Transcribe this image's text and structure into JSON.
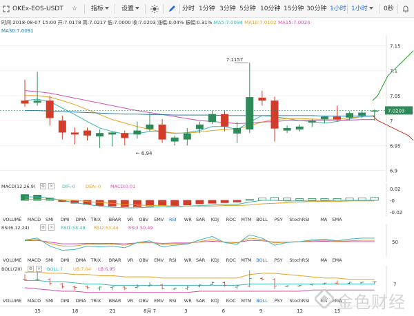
{
  "toolbar": {
    "symbol": "OKEx-EOS-USDT",
    "indicator_label": "指标",
    "settings_label": "设置",
    "intervals": [
      "分时",
      "1分钟",
      "3分钟",
      "5分钟",
      "10分钟",
      "15分钟",
      "30分钟",
      "1小时"
    ],
    "active_interval": "1小时",
    "interval_select": "1小时",
    "countdown": "0秒",
    "accent_color": "#2a6cd1"
  },
  "info_bar": {
    "time": "时间:2018-08-07 15:00",
    "open": "开:7.0178",
    "high": "高:7.0217",
    "low": "低:7.0000",
    "close": "收:7.0203",
    "change": "涨幅:0.04%",
    "amplitude": "振幅:0.31%",
    "ma5": "MA5:7.0094",
    "ma10": "MA10:7.0102",
    "ma15": "MA15:7.0024",
    "ma30": "MA30:7.0091"
  },
  "main_chart": {
    "y_ticks": [
      "7.15",
      "7.1",
      "7.05",
      "7",
      "6.95",
      "6.9"
    ],
    "current_price": "7.0203",
    "high_marker": "7.1157",
    "low_marker": "6.94",
    "up_color": "#2e8b57",
    "down_color": "#d23c2a"
  },
  "chart_data": {
    "type": "candlestick",
    "x_ticks": [
      "15",
      "18",
      "21",
      "8月 7",
      "3",
      "6",
      "9",
      "12",
      "15"
    ],
    "candles": [
      {
        "o": 7.04,
        "h": 7.082,
        "l": 7.028,
        "c": 7.034
      },
      {
        "o": 7.036,
        "h": 7.098,
        "l": 7.03,
        "c": 7.04
      },
      {
        "o": 7.04,
        "h": 7.05,
        "l": 6.99,
        "c": 7.005
      },
      {
        "o": 7.0,
        "h": 7.01,
        "l": 6.962,
        "c": 6.976
      },
      {
        "o": 6.976,
        "h": 6.986,
        "l": 6.952,
        "c": 6.972
      },
      {
        "o": 6.98,
        "h": 6.986,
        "l": 6.96,
        "c": 6.97
      },
      {
        "o": 6.968,
        "h": 6.982,
        "l": 6.945,
        "c": 6.975
      },
      {
        "o": 6.972,
        "h": 6.978,
        "l": 6.948,
        "c": 6.976
      },
      {
        "o": 6.975,
        "h": 6.98,
        "l": 6.95,
        "c": 6.965
      },
      {
        "o": 6.972,
        "h": 6.998,
        "l": 6.964,
        "c": 6.98
      },
      {
        "o": 6.983,
        "h": 7.015,
        "l": 6.978,
        "c": 6.992
      },
      {
        "o": 6.992,
        "h": 7.003,
        "l": 6.955,
        "c": 6.962
      },
      {
        "o": 6.958,
        "h": 6.97,
        "l": 6.95,
        "c": 6.966
      },
      {
        "o": 6.962,
        "h": 6.985,
        "l": 6.95,
        "c": 6.974
      },
      {
        "o": 6.983,
        "h": 6.998,
        "l": 6.975,
        "c": 6.992
      },
      {
        "o": 6.997,
        "h": 7.02,
        "l": 6.993,
        "c": 7.013
      },
      {
        "o": 7.013,
        "h": 7.02,
        "l": 6.978,
        "c": 6.988
      },
      {
        "o": 6.974,
        "h": 6.997,
        "l": 6.955,
        "c": 6.985
      },
      {
        "o": 6.982,
        "h": 7.116,
        "l": 6.975,
        "c": 7.047
      },
      {
        "o": 7.046,
        "h": 7.06,
        "l": 7.03,
        "c": 7.04
      },
      {
        "o": 7.04,
        "h": 7.048,
        "l": 6.958,
        "c": 6.984
      },
      {
        "o": 6.98,
        "h": 6.99,
        "l": 6.975,
        "c": 6.985
      },
      {
        "o": 6.982,
        "h": 6.992,
        "l": 6.978,
        "c": 6.988
      },
      {
        "o": 6.996,
        "h": 7.003,
        "l": 6.987,
        "c": 7.0
      },
      {
        "o": 7.003,
        "h": 7.01,
        "l": 6.995,
        "c": 7.008
      },
      {
        "o": 7.008,
        "h": 7.03,
        "l": 6.998,
        "c": 7.002
      },
      {
        "o": 7.006,
        "h": 7.018,
        "l": 7.0,
        "c": 7.015
      },
      {
        "o": 7.01,
        "h": 7.02,
        "l": 7.005,
        "c": 7.016
      },
      {
        "o": 7.018,
        "h": 7.022,
        "l": 7.0,
        "c": 7.02
      }
    ],
    "ma_lines": [
      {
        "name": "MA5",
        "color": "#3cb4b4",
        "values": [
          7.04,
          7.043,
          7.038,
          7.025,
          7.012,
          6.998,
          6.985,
          6.978,
          6.973,
          6.974,
          6.978,
          6.977,
          6.974,
          6.976,
          6.98,
          6.988,
          6.988,
          6.982,
          6.997,
          7.01,
          7.008,
          7.004,
          7.0,
          6.998,
          6.995,
          6.998,
          7.003,
          7.008,
          7.009
        ]
      },
      {
        "name": "MA10",
        "color": "#e8a020",
        "values": [
          7.05,
          7.05,
          7.047,
          7.04,
          7.032,
          7.022,
          7.012,
          7.002,
          6.995,
          6.988,
          6.982,
          6.978,
          6.975,
          6.975,
          6.977,
          6.98,
          6.982,
          6.983,
          6.99,
          6.997,
          7.002,
          7.004,
          7.004,
          7.003,
          7.002,
          7.003,
          7.005,
          7.008,
          7.01
        ]
      },
      {
        "name": "MA15",
        "color": "#d050b0",
        "values": [
          7.06,
          7.058,
          7.055,
          7.05,
          7.045,
          7.04,
          7.035,
          7.03,
          7.025,
          7.02,
          7.016,
          7.012,
          7.008,
          7.004,
          7.0,
          6.998,
          6.996,
          6.994,
          6.995,
          6.997,
          6.998,
          7.0,
          7.0,
          7.0,
          7.0,
          7.0,
          7.001,
          7.002,
          7.002
        ]
      },
      {
        "name": "MA30",
        "color": "#2a7ab0",
        "values": [
          7.02,
          7.02,
          7.019,
          7.018,
          7.017,
          7.016,
          7.015,
          7.014,
          7.013,
          7.013,
          7.012,
          7.012,
          7.011,
          7.011,
          7.011,
          7.011,
          7.01,
          7.01,
          7.01,
          7.01,
          7.01,
          7.01,
          7.01,
          7.01,
          7.009,
          7.009,
          7.009,
          7.009,
          7.009
        ]
      }
    ],
    "right_lines": [
      {
        "color": "#20a020",
        "values": [
          7.04,
          7.05,
          7.07,
          7.09,
          7.1,
          7.11,
          7.12,
          7.13,
          7.14
        ]
      },
      {
        "color": "#c03020",
        "values": [
          7.01,
          7.0,
          6.995,
          6.99,
          6.985,
          6.98,
          6.975,
          6.97,
          6.96
        ]
      }
    ],
    "macd": {
      "params": "MACD(12,26,9)",
      "dif_label": "DIF:-0",
      "dea_label": "DEA:-0",
      "macd_label": "MACD:0.01",
      "y_ticks": [
        "0.02",
        "-0",
        "-0.02"
      ],
      "hist": [
        0.01,
        0.009,
        0.004,
        -0.002,
        -0.005,
        -0.007,
        -0.009,
        -0.01,
        -0.011,
        -0.011,
        -0.01,
        -0.009,
        -0.009,
        -0.008,
        -0.006,
        -0.005,
        -0.004,
        -0.003,
        0.002,
        0.004,
        0.005,
        0.004,
        0.003,
        0.003,
        0.003,
        0.003,
        0.004,
        0.004,
        0.005
      ],
      "dif": [
        0.006,
        0.006,
        0.004,
        0.0,
        -0.004,
        -0.007,
        -0.01,
        -0.012,
        -0.013,
        -0.013,
        -0.012,
        -0.011,
        -0.011,
        -0.01,
        -0.009,
        -0.008,
        -0.007,
        -0.007,
        -0.003,
        0.0,
        0.0,
        -0.001,
        -0.001,
        -0.001,
        -0.001,
        0.0,
        0.0,
        0.0,
        0.0
      ],
      "dea": [
        0.002,
        0.002,
        0.002,
        0.001,
        0.0,
        -0.002,
        -0.004,
        -0.005,
        -0.007,
        -0.008,
        -0.009,
        -0.009,
        -0.01,
        -0.01,
        -0.01,
        -0.01,
        -0.009,
        -0.009,
        -0.008,
        -0.006,
        -0.005,
        -0.004,
        -0.003,
        -0.002,
        -0.002,
        -0.002,
        -0.001,
        -0.001,
        -0.001
      ]
    },
    "rsi": {
      "params": "RSI(6,12,24)",
      "rsi1_label": "RSI1:58.48",
      "rsi2_label": "RSI2:53.44",
      "rsi3_label": "RSI3:50.49",
      "y_ticks": [
        "50"
      ],
      "rsi1": [
        54,
        58,
        40,
        30,
        32,
        40,
        38,
        40,
        36,
        48,
        52,
        38,
        42,
        44,
        54,
        62,
        48,
        44,
        66,
        58,
        42,
        48,
        50,
        54,
        56,
        52,
        56,
        58,
        58
      ],
      "rsi2": [
        53,
        55,
        46,
        40,
        40,
        44,
        43,
        44,
        42,
        47,
        49,
        43,
        45,
        46,
        50,
        55,
        49,
        47,
        58,
        55,
        47,
        49,
        50,
        52,
        53,
        51,
        52,
        53,
        53
      ],
      "rsi3": [
        52,
        53,
        49,
        45,
        45,
        46,
        46,
        46,
        45,
        47,
        48,
        46,
        47,
        47,
        49,
        51,
        49,
        48,
        53,
        52,
        49,
        49,
        50,
        50,
        51,
        50,
        50,
        50,
        50
      ]
    },
    "boll": {
      "params": "BOLL(20)",
      "boll_label": "BOLL:7",
      "ub_label": "UB:7.04",
      "lb_label": "LB:6.95",
      "y_ticks": [
        "7"
      ],
      "ub": [
        7.1,
        7.1,
        7.09,
        7.09,
        7.08,
        7.08,
        7.07,
        7.07,
        7.06,
        7.06,
        7.06,
        7.05,
        7.05,
        7.05,
        7.05,
        7.05,
        7.05,
        7.05,
        7.08,
        7.09,
        7.09,
        7.08,
        7.07,
        7.06,
        7.05,
        7.05,
        7.04,
        7.04,
        7.04
      ],
      "mid": [
        7.03,
        7.03,
        7.02,
        7.02,
        7.01,
        7.0,
        7.0,
        6.99,
        6.99,
        6.99,
        6.99,
        6.99,
        6.99,
        6.99,
        6.99,
        6.99,
        6.99,
        6.99,
        7.0,
        7.0,
        7.0,
        7.0,
        7.0,
        7.0,
        7.0,
        7.0,
        7.0,
        7.0,
        7.0
      ],
      "lb": [
        6.97,
        6.96,
        6.95,
        6.94,
        6.94,
        6.93,
        6.93,
        6.93,
        6.93,
        6.93,
        6.93,
        6.93,
        6.93,
        6.93,
        6.94,
        6.94,
        6.94,
        6.94,
        6.94,
        6.94,
        6.94,
        6.94,
        6.94,
        6.95,
        6.95,
        6.95,
        6.95,
        6.95,
        6.95
      ]
    }
  },
  "indicator_tabs_1": [
    "VOLUME",
    "MACD",
    "SMI",
    "DMI",
    "DMA",
    "TRIX",
    "BRAR",
    "VR",
    "OBV",
    "EMV",
    "RSI",
    "WR",
    "SAR",
    "KDJ",
    "ROC",
    "MTM",
    "BOLL",
    "PSY",
    "StochRSI",
    "MA",
    "EMA"
  ],
  "indicator_tabs_1_active": "RSI",
  "indicator_tabs_2": [
    "VOLUME",
    "MACD",
    "SMI",
    "DMI",
    "DMA",
    "TRIX",
    "BRAR",
    "VR",
    "OBV",
    "EMV",
    "RSI",
    "WR",
    "SAR",
    "KDJ",
    "ROC",
    "MTM",
    "BOLL",
    "PSY",
    "StochRSI",
    "MA",
    "EMA"
  ],
  "indicator_tabs_2_active": "BOLL",
  "indicator_tabs_3": [
    "VOLUME",
    "MACD",
    "SMI",
    "DMI",
    "DMA",
    "TRIX",
    "BRAR",
    "VR",
    "OBV",
    "EMV",
    "RSI",
    "WR",
    "SAR",
    "KDJ",
    "ROC",
    "MTM",
    "BOLL",
    "PSY",
    "StochRSI",
    "MA",
    "EMA"
  ],
  "indicator_tabs_3_active": "BOLL",
  "watermark": "金色财经"
}
